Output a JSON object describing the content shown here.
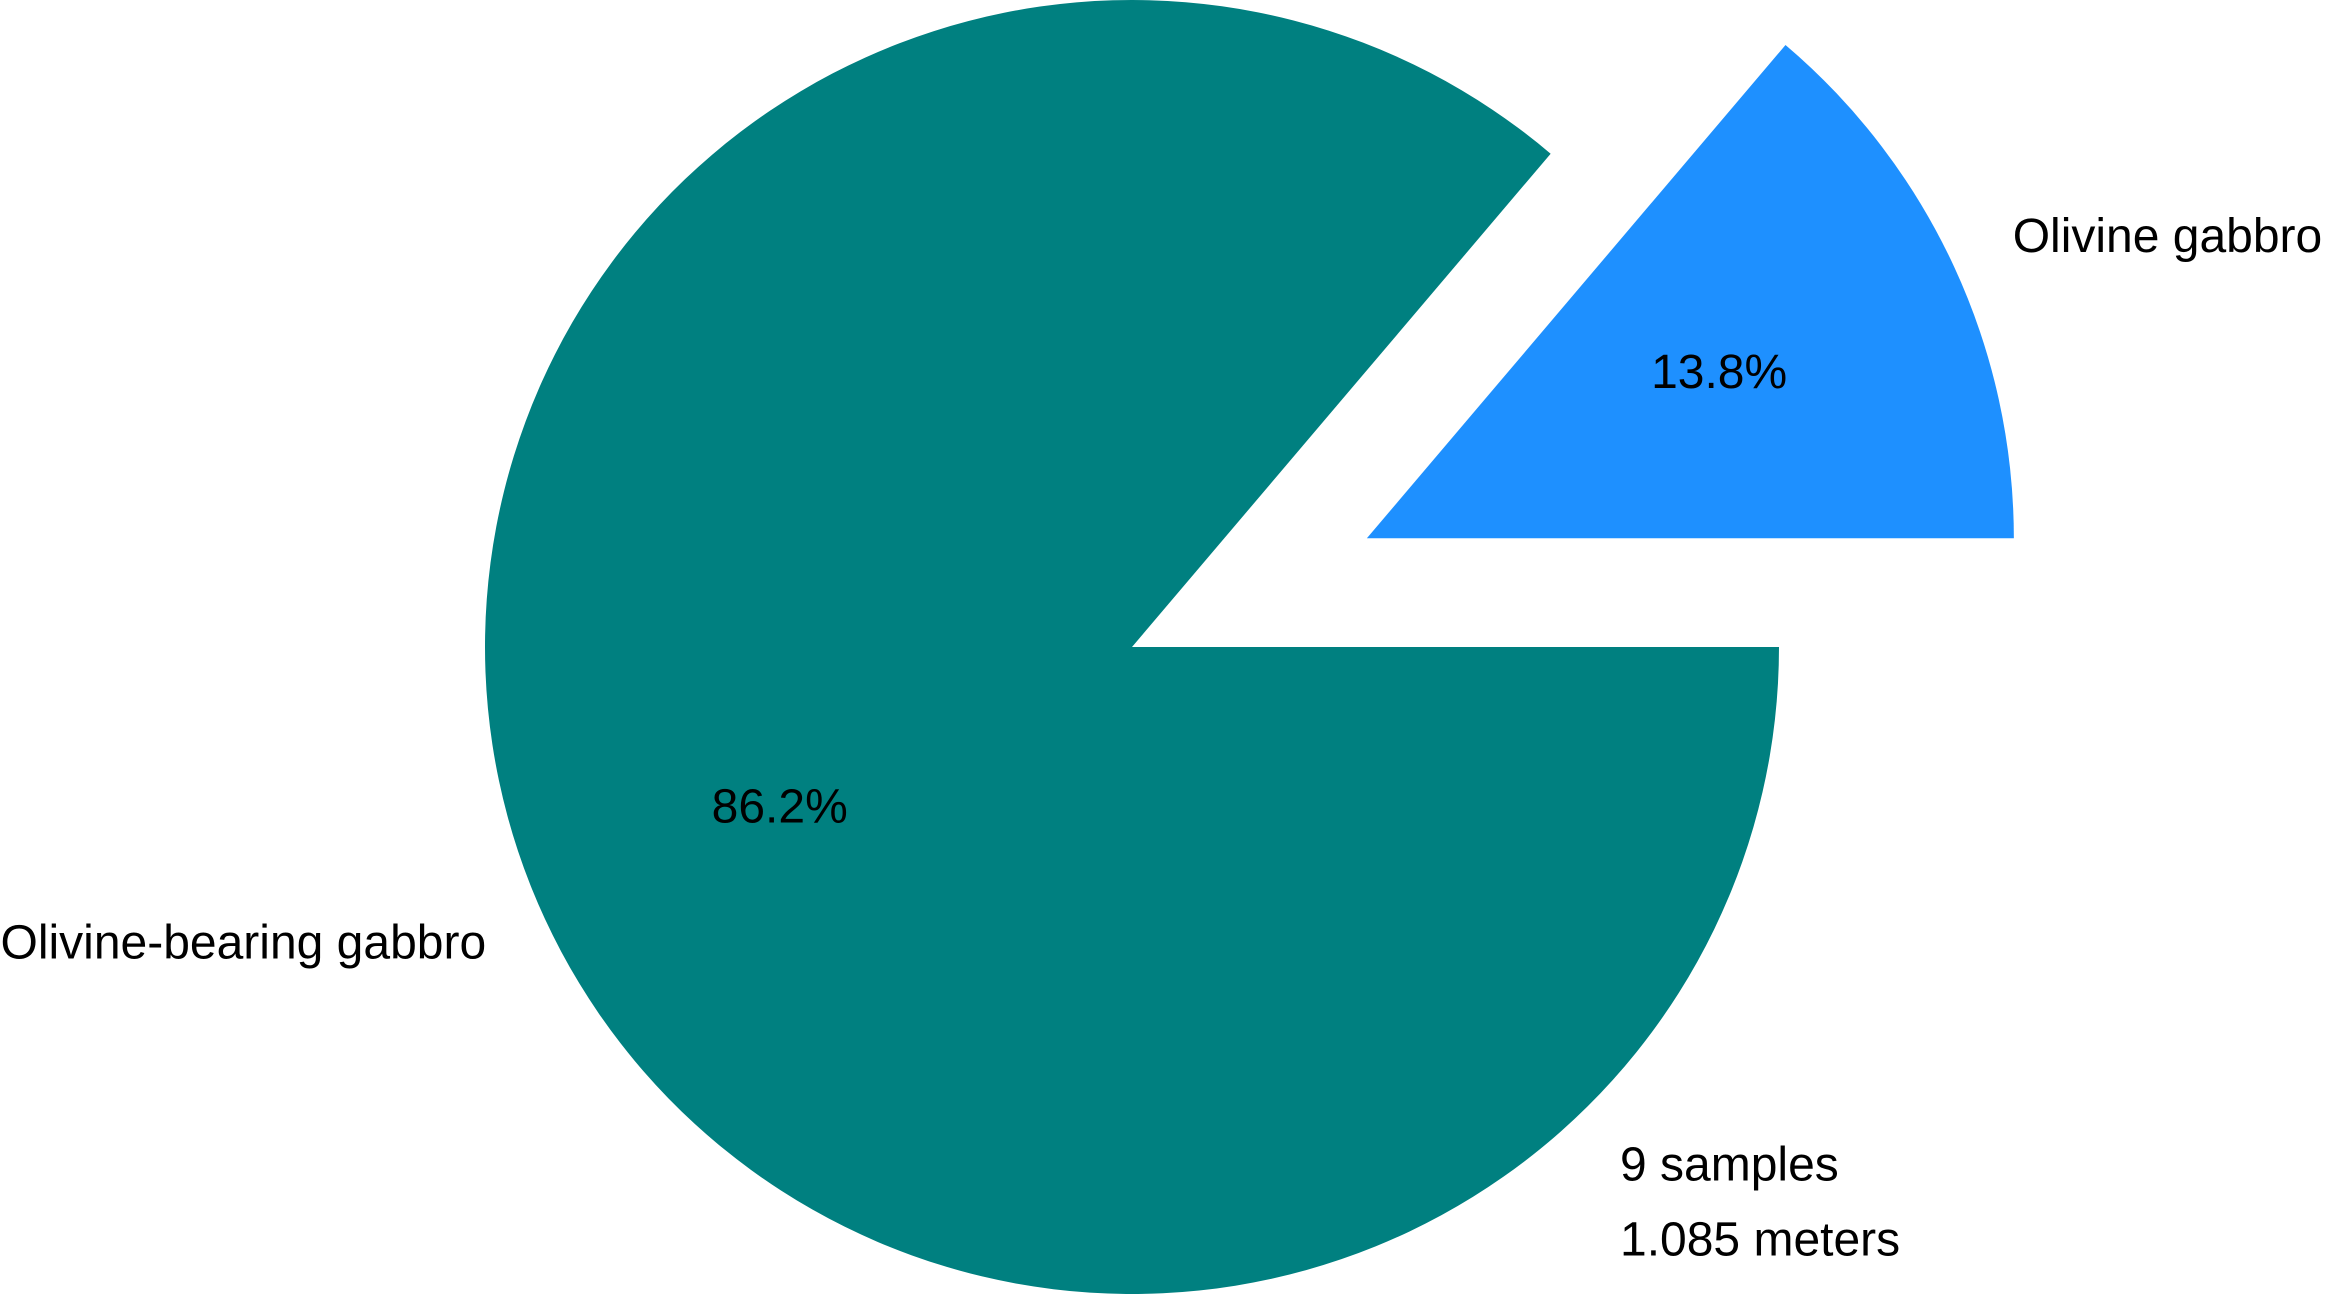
{
  "chart_data": {
    "type": "pie",
    "categories": [
      "Olivine gabbro",
      "Olivine-bearing gabbro"
    ],
    "values": [
      13.8,
      86.2
    ],
    "value_labels": [
      "13.8%",
      "86.2%"
    ],
    "colors": [
      "#1e90ff",
      "#008080"
    ],
    "annotations": [
      "9 samples",
      "1.085 meters"
    ]
  }
}
